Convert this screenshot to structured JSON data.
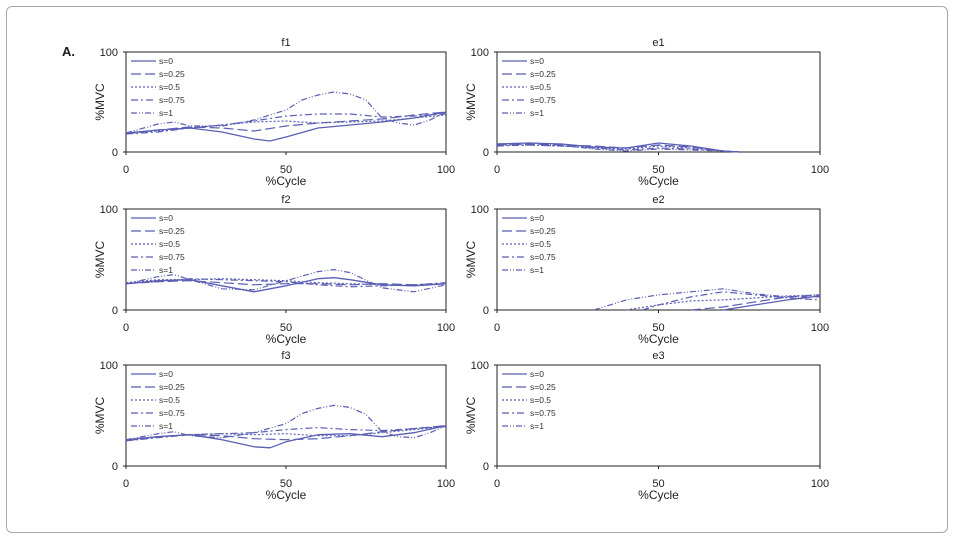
{
  "panel_label": "A.",
  "chart_data": [
    {
      "type": "line",
      "title": "f1",
      "xlabel": "%Cycle",
      "ylabel": "%MVC",
      "xlim": [
        0,
        100
      ],
      "ylim": [
        0,
        100
      ],
      "xticks": [
        "0",
        "50",
        "100"
      ],
      "yticks": [
        "0",
        "100"
      ],
      "series": [
        {
          "name": "s=0",
          "x": [
            0,
            10,
            20,
            30,
            40,
            45,
            50,
            60,
            70,
            80,
            90,
            100
          ],
          "values": [
            19,
            22,
            24,
            20,
            13,
            11,
            15,
            24,
            27,
            30,
            34,
            40
          ]
        },
        {
          "name": "s=0.25",
          "x": [
            0,
            10,
            20,
            30,
            40,
            50,
            60,
            70,
            80,
            90,
            100
          ],
          "values": [
            18,
            22,
            25,
            24,
            21,
            26,
            29,
            31,
            33,
            37,
            40
          ]
        },
        {
          "name": "s=0.5",
          "x": [
            0,
            10,
            20,
            30,
            40,
            50,
            60,
            70,
            80,
            90,
            100
          ],
          "values": [
            19,
            21,
            24,
            27,
            30,
            31,
            29,
            30,
            31,
            34,
            37
          ]
        },
        {
          "name": "s=0.75",
          "x": [
            0,
            10,
            20,
            30,
            40,
            50,
            60,
            70,
            80,
            90,
            100
          ],
          "values": [
            18,
            20,
            24,
            27,
            31,
            36,
            38,
            38,
            35,
            36,
            38
          ]
        },
        {
          "name": "s=1",
          "x": [
            0,
            10,
            15,
            20,
            30,
            40,
            50,
            55,
            60,
            65,
            70,
            75,
            80,
            85,
            90,
            95,
            100
          ],
          "values": [
            19,
            28,
            30,
            26,
            26,
            32,
            42,
            52,
            57,
            60,
            58,
            52,
            34,
            29,
            27,
            32,
            40
          ]
        }
      ]
    },
    {
      "type": "line",
      "title": "e1",
      "xlabel": "%Cycle",
      "ylabel": "%MVC",
      "xlim": [
        0,
        100
      ],
      "ylim": [
        0,
        100
      ],
      "xticks": [
        "0",
        "50",
        "100"
      ],
      "yticks": [
        "0",
        "100"
      ],
      "series": [
        {
          "name": "s=0",
          "x": [
            0,
            10,
            20,
            30,
            40,
            50,
            60,
            70,
            75
          ],
          "values": [
            8,
            9,
            8,
            5,
            4,
            9,
            6,
            1,
            0
          ]
        },
        {
          "name": "s=0.25",
          "x": [
            0,
            10,
            20,
            30,
            40,
            50,
            60,
            70,
            75
          ],
          "values": [
            7,
            8,
            7,
            6,
            4,
            7,
            5,
            1,
            0
          ]
        },
        {
          "name": "s=0.5",
          "x": [
            0,
            10,
            20,
            30,
            40,
            50,
            60,
            70,
            75
          ],
          "values": [
            7,
            7,
            6,
            4,
            3,
            6,
            4,
            1,
            0
          ]
        },
        {
          "name": "s=0.75",
          "x": [
            0,
            10,
            20,
            30,
            40,
            50,
            60,
            70,
            75
          ],
          "values": [
            6,
            7,
            6,
            4,
            2,
            4,
            3,
            1,
            0
          ]
        },
        {
          "name": "s=1",
          "x": [
            0,
            10,
            20,
            30,
            40,
            50,
            60,
            70,
            75
          ],
          "values": [
            8,
            9,
            7,
            3,
            1,
            3,
            2,
            1,
            0
          ]
        }
      ]
    },
    {
      "type": "line",
      "title": "f2",
      "xlabel": "%Cycle",
      "ylabel": "%MVC",
      "xlim": [
        0,
        100
      ],
      "ylim": [
        0,
        100
      ],
      "xticks": [
        "0",
        "50",
        "100"
      ],
      "yticks": [
        "0",
        "100"
      ],
      "series": [
        {
          "name": "s=0",
          "x": [
            0,
            10,
            20,
            30,
            40,
            50,
            60,
            65,
            70,
            80,
            90,
            100
          ],
          "values": [
            26,
            29,
            30,
            24,
            18,
            24,
            31,
            32,
            30,
            25,
            24,
            26
          ]
        },
        {
          "name": "s=0.25",
          "x": [
            0,
            10,
            20,
            30,
            40,
            50,
            60,
            70,
            80,
            90,
            100
          ],
          "values": [
            26,
            28,
            29,
            27,
            25,
            26,
            26,
            25,
            26,
            25,
            26
          ]
        },
        {
          "name": "s=0.5",
          "x": [
            0,
            10,
            20,
            30,
            40,
            50,
            60,
            70,
            80,
            90,
            100
          ],
          "values": [
            27,
            30,
            30,
            31,
            30,
            29,
            27,
            26,
            25,
            24,
            26
          ]
        },
        {
          "name": "s=0.75",
          "x": [
            0,
            10,
            20,
            30,
            40,
            50,
            60,
            70,
            80,
            90,
            100
          ],
          "values": [
            26,
            28,
            31,
            30,
            29,
            28,
            25,
            23,
            24,
            25,
            27
          ]
        },
        {
          "name": "s=1",
          "x": [
            0,
            10,
            15,
            20,
            30,
            40,
            50,
            60,
            65,
            70,
            80,
            90,
            100
          ],
          "values": [
            26,
            33,
            35,
            30,
            21,
            20,
            29,
            38,
            40,
            37,
            22,
            18,
            25
          ]
        }
      ]
    },
    {
      "type": "line",
      "title": "e2",
      "xlabel": "%Cycle",
      "ylabel": "%MVC",
      "xlim": [
        0,
        100
      ],
      "ylim": [
        0,
        100
      ],
      "xticks": [
        "0",
        "50",
        "100"
      ],
      "yticks": [
        "0",
        "100"
      ],
      "series": [
        {
          "name": "s=0",
          "x": [
            70,
            80,
            90,
            100
          ],
          "values": [
            0,
            5,
            10,
            14
          ]
        },
        {
          "name": "s=0.25",
          "x": [
            60,
            70,
            80,
            90,
            100
          ],
          "values": [
            0,
            3,
            8,
            13,
            15
          ]
        },
        {
          "name": "s=0.5",
          "x": [
            40,
            50,
            60,
            70,
            80,
            90,
            100
          ],
          "values": [
            0,
            5,
            9,
            10,
            12,
            14,
            15
          ]
        },
        {
          "name": "s=0.75",
          "x": [
            45,
            50,
            60,
            70,
            80,
            90,
            100
          ],
          "values": [
            0,
            5,
            13,
            18,
            15,
            12,
            10
          ]
        },
        {
          "name": "s=1",
          "x": [
            30,
            40,
            50,
            60,
            70,
            80,
            90,
            100
          ],
          "values": [
            0,
            10,
            15,
            18,
            21,
            16,
            13,
            13
          ]
        }
      ]
    },
    {
      "type": "line",
      "title": "f3",
      "xlabel": "%Cycle",
      "ylabel": "%MVC",
      "xlim": [
        0,
        100
      ],
      "ylim": [
        0,
        100
      ],
      "xticks": [
        "0",
        "50",
        "100"
      ],
      "yticks": [
        "0",
        "100"
      ],
      "series": [
        {
          "name": "s=0",
          "x": [
            0,
            10,
            20,
            30,
            40,
            45,
            50,
            60,
            70,
            80,
            90,
            100
          ],
          "values": [
            26,
            29,
            31,
            26,
            19,
            18,
            24,
            31,
            32,
            29,
            33,
            40
          ]
        },
        {
          "name": "s=0.25",
          "x": [
            0,
            10,
            20,
            30,
            40,
            50,
            60,
            70,
            80,
            90,
            100
          ],
          "values": [
            25,
            29,
            31,
            30,
            27,
            26,
            27,
            30,
            34,
            37,
            40
          ]
        },
        {
          "name": "s=0.5",
          "x": [
            0,
            10,
            20,
            30,
            40,
            50,
            60,
            70,
            80,
            90,
            100
          ],
          "values": [
            26,
            29,
            31,
            32,
            31,
            32,
            30,
            30,
            33,
            36,
            39
          ]
        },
        {
          "name": "s=0.75",
          "x": [
            0,
            10,
            20,
            30,
            40,
            50,
            60,
            70,
            80,
            90,
            100
          ],
          "values": [
            25,
            28,
            31,
            32,
            33,
            36,
            38,
            36,
            35,
            37,
            39
          ]
        },
        {
          "name": "s=1",
          "x": [
            0,
            10,
            15,
            20,
            30,
            40,
            50,
            55,
            60,
            65,
            70,
            75,
            80,
            85,
            90,
            95,
            100
          ],
          "values": [
            26,
            32,
            34,
            30,
            28,
            33,
            42,
            52,
            57,
            60,
            58,
            51,
            34,
            29,
            28,
            33,
            40
          ]
        }
      ]
    },
    {
      "type": "line",
      "title": "e3",
      "xlabel": "%Cycle",
      "ylabel": "%MVC",
      "xlim": [
        0,
        100
      ],
      "ylim": [
        0,
        100
      ],
      "xticks": [
        "0",
        "50",
        "100"
      ],
      "yticks": [
        "0",
        "100"
      ],
      "series": [
        {
          "name": "s=0",
          "x": [],
          "values": []
        },
        {
          "name": "s=0.25",
          "x": [],
          "values": []
        },
        {
          "name": "s=0.5",
          "x": [],
          "values": []
        },
        {
          "name": "s=0.75",
          "x": [],
          "values": []
        },
        {
          "name": "s=1",
          "x": [],
          "values": []
        }
      ]
    }
  ],
  "series_color": "#5a5fb4",
  "axis_color": "#222222"
}
